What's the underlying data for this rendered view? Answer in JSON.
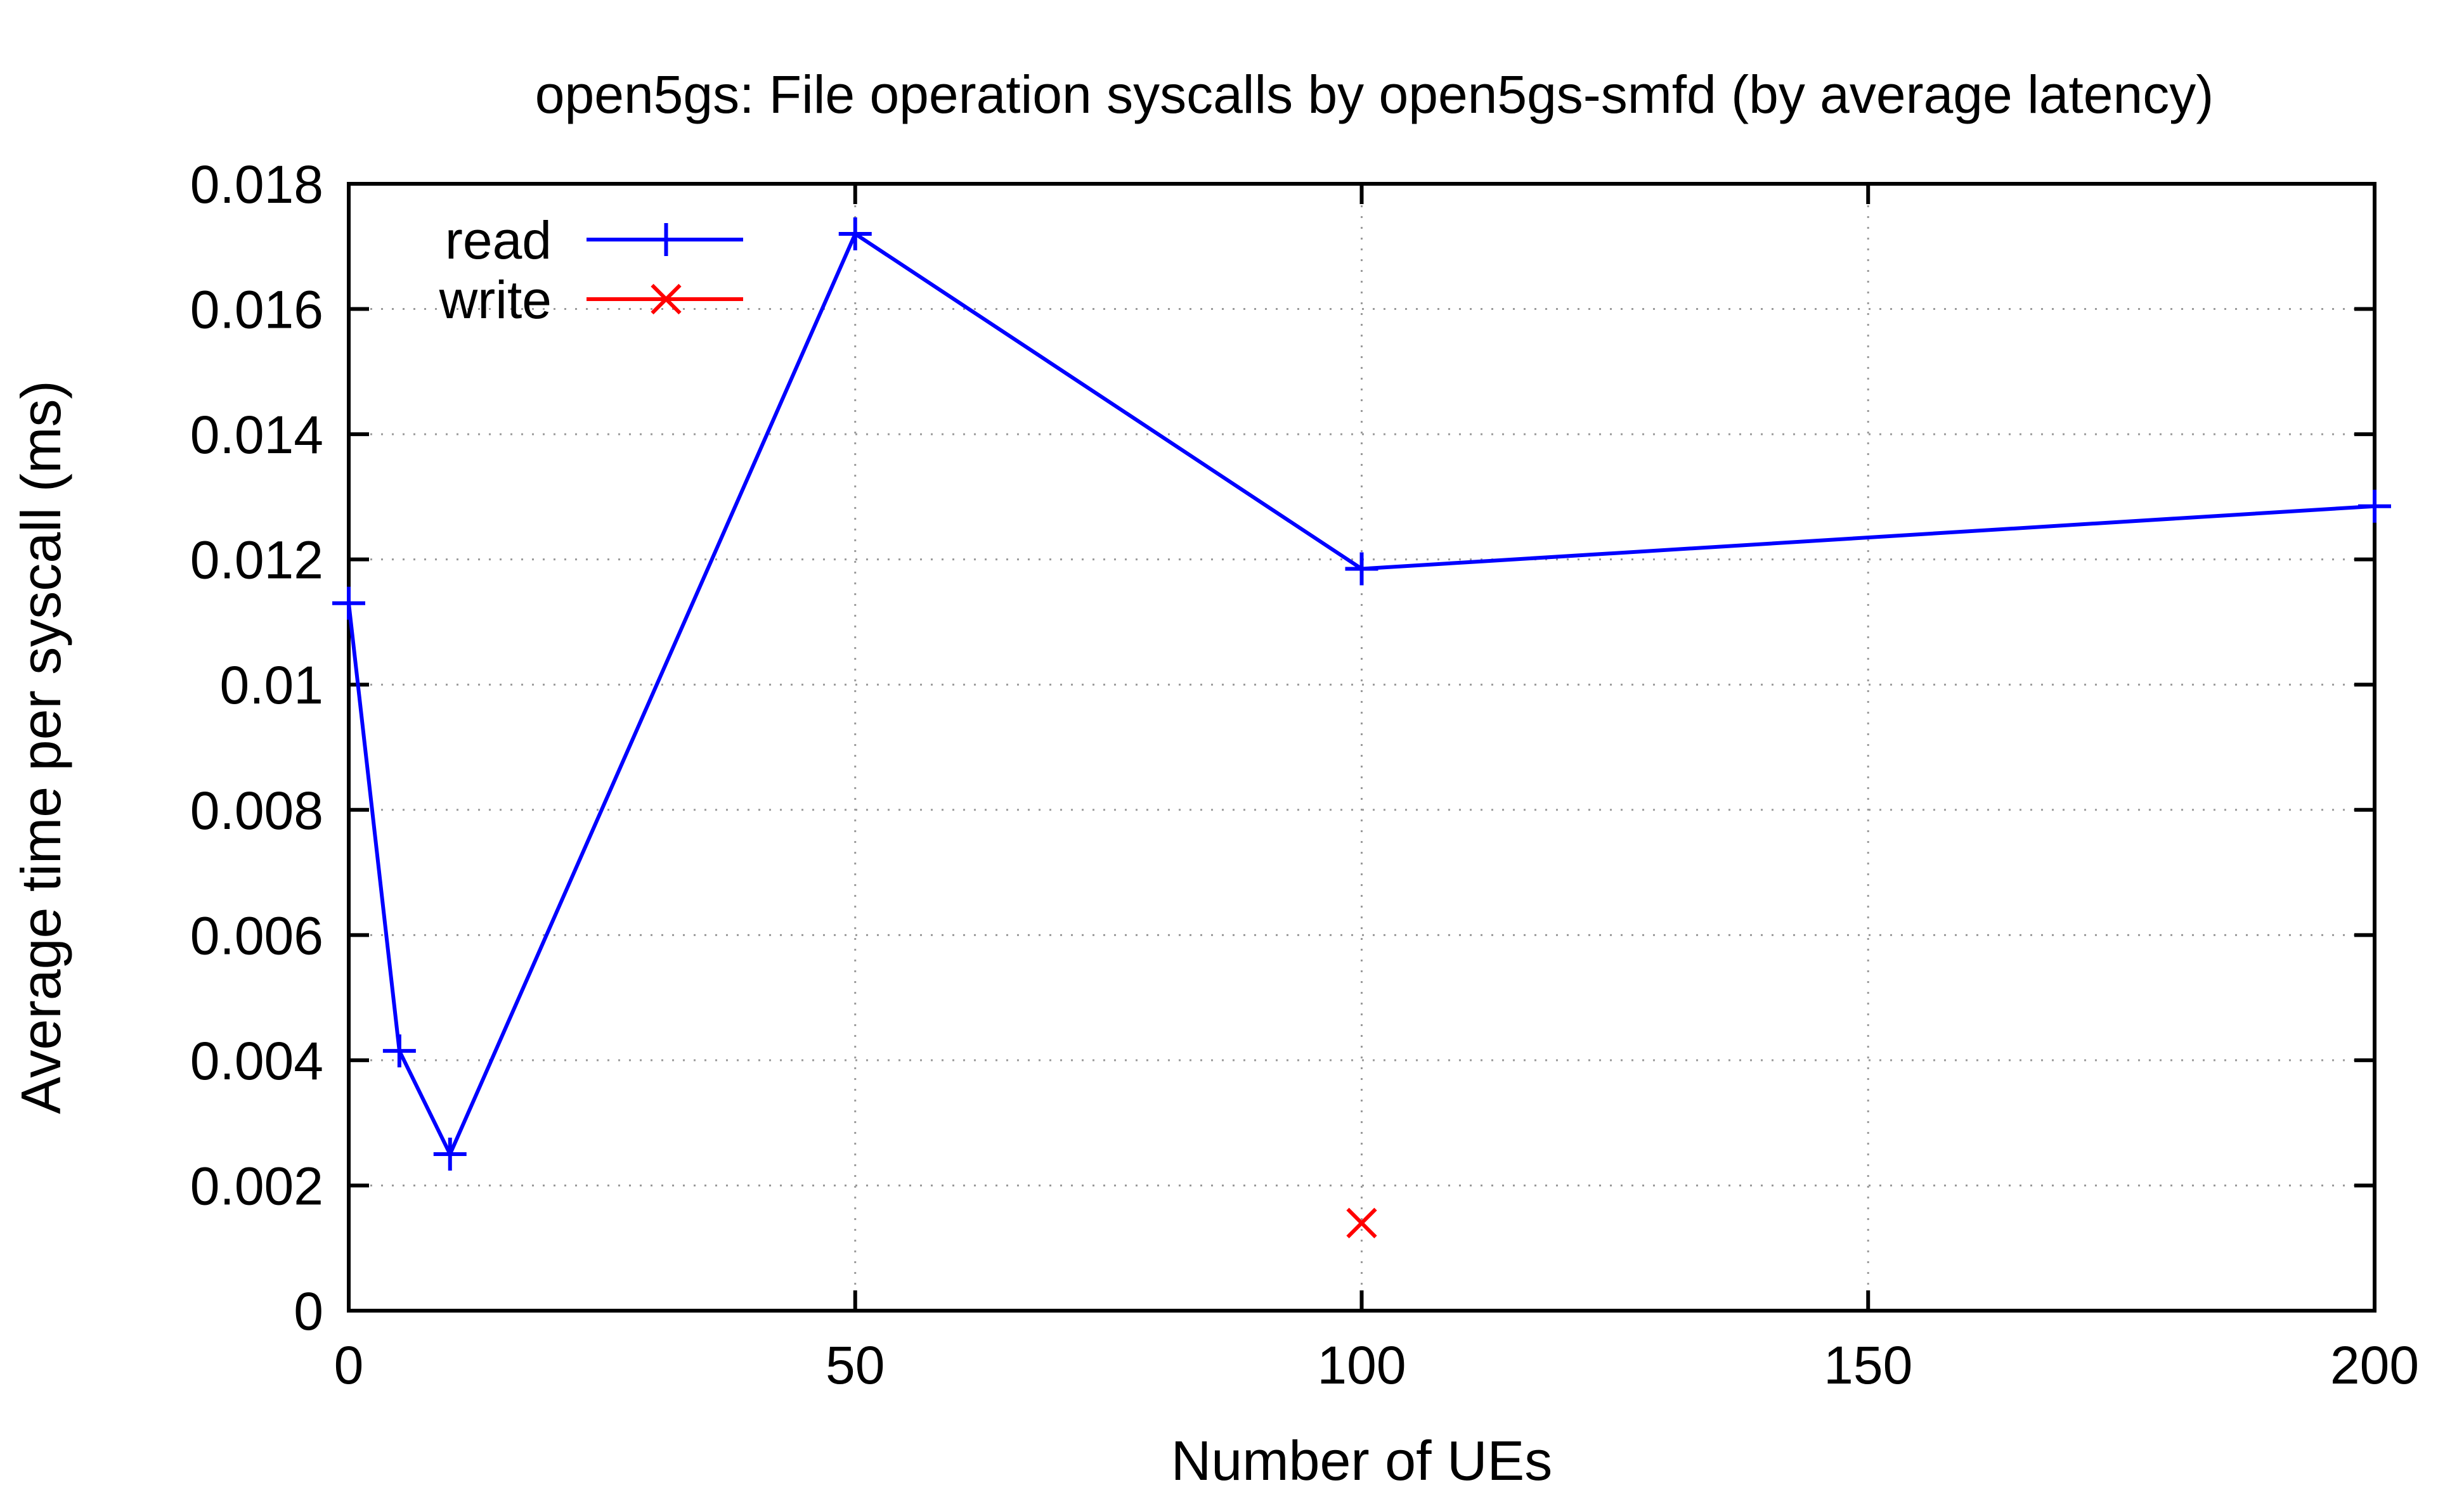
{
  "chart_data": {
    "type": "line",
    "title": "open5gs: File operation syscalls by open5gs-smfd (by average latency)",
    "xlabel": "Number of UEs",
    "ylabel": "Average time per syscall (ms)",
    "xlim": [
      0,
      200
    ],
    "ylim": [
      0,
      0.018
    ],
    "xticks": [
      0,
      50,
      100,
      150,
      200
    ],
    "xtick_labels": [
      "0",
      "50",
      "100",
      "150",
      "200"
    ],
    "yticks": [
      0,
      0.002,
      0.004,
      0.006,
      0.008,
      0.01,
      0.012,
      0.014,
      0.016,
      0.018
    ],
    "ytick_labels": [
      "0",
      "0.002",
      "0.004",
      "0.006",
      "0.008",
      "0.01",
      "0.012",
      "0.014",
      "0.016",
      "0.018"
    ],
    "grid": true,
    "legend_position": "top-left",
    "series": [
      {
        "name": "read",
        "color": "#0000ff",
        "marker": "plus",
        "line": true,
        "x": [
          0,
          5,
          10,
          50,
          100,
          200
        ],
        "y": [
          0.0113,
          0.00415,
          0.0025,
          0.0172,
          0.01185,
          0.01285
        ]
      },
      {
        "name": "write",
        "color": "#ff0000",
        "marker": "cross",
        "line": true,
        "x": [
          100
        ],
        "y": [
          0.0014
        ]
      }
    ]
  }
}
